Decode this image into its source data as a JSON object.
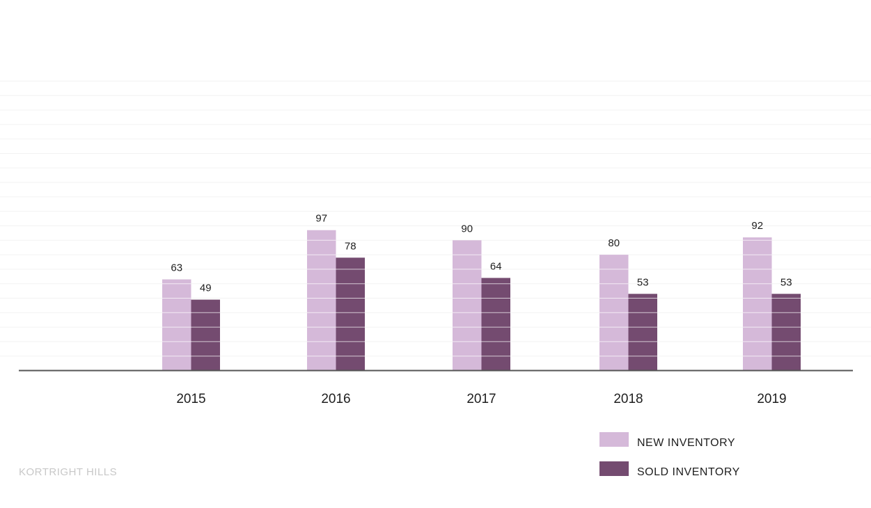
{
  "chart_data": {
    "type": "bar",
    "title": "",
    "xlabel": "",
    "ylabel": "",
    "categories": [
      "2015",
      "2016",
      "2017",
      "2018",
      "2019"
    ],
    "series": [
      {
        "name": "NEW INVENTORY",
        "values": [
          63,
          97,
          90,
          80,
          92
        ],
        "color": "#d5b9d9"
      },
      {
        "name": "SOLD INVENTORY",
        "values": [
          49,
          78,
          64,
          53,
          53
        ],
        "color": "#744b70"
      }
    ],
    "ylim": [
      0,
      200
    ],
    "grid": true,
    "legend": "bottom-right",
    "data_labels": true
  },
  "footer": {
    "brand": "KORTRIGHT HILLS"
  },
  "colors": {
    "gridline": "#f2f2f2",
    "axis": "#555555",
    "bar_separator": "#ffffff"
  }
}
